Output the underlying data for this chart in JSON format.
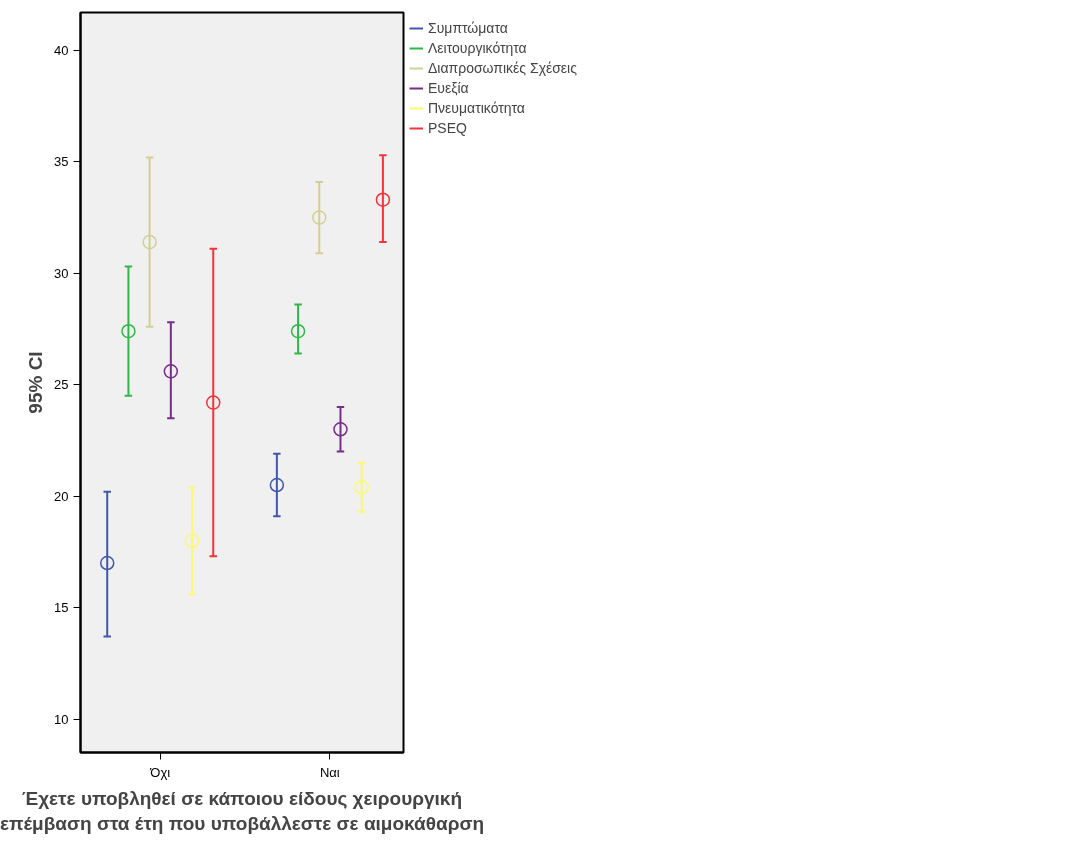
{
  "chart_data": {
    "type": "scatter",
    "xlabel": "Έχετε υποβληθεί σε κάποιου είδους χειρουργική\nεπέμβαση στα έτη που υποβάλλεστε σε αιμοκάθαρση",
    "ylabel": "95% CI",
    "categories": [
      "Όχι",
      "Ναι"
    ],
    "ylim": [
      8.5,
      41.7
    ],
    "yticks": [
      10,
      15,
      20,
      25,
      30,
      35,
      40
    ],
    "grid": false,
    "legend": "top right",
    "marker": "circle",
    "series": [
      {
        "name": "Συμπτώματα",
        "color": "#3e58ac",
        "values": [
          17.0,
          20.5
        ],
        "errors": [
          [
            13.7,
            20.2
          ],
          [
            19.1,
            21.9
          ]
        ]
      },
      {
        "name": "Λειτουργικότητα",
        "color": "#2eb848",
        "values": [
          27.4,
          27.4
        ],
        "errors": [
          [
            24.5,
            30.3
          ],
          [
            26.4,
            28.6
          ]
        ]
      },
      {
        "name": "Διαπροσωπικές Σχέσεις",
        "color": "#d3ce97",
        "values": [
          31.4,
          32.5
        ],
        "errors": [
          [
            27.6,
            35.2
          ],
          [
            30.9,
            34.1
          ]
        ]
      },
      {
        "name": "Ευεξία",
        "color": "#772d8b",
        "values": [
          25.6,
          23.0
        ],
        "errors": [
          [
            23.5,
            27.8
          ],
          [
            22.0,
            24.0
          ]
        ]
      },
      {
        "name": "Πνευματικότητα",
        "color": "#fbf873",
        "values": [
          18.0,
          20.4
        ],
        "errors": [
          [
            15.6,
            20.4
          ],
          [
            19.3,
            21.5
          ]
        ]
      },
      {
        "name": "PSEQ",
        "color": "#f2323c",
        "values": [
          24.2,
          33.3
        ],
        "errors": [
          [
            17.3,
            31.1
          ],
          [
            31.4,
            35.3
          ]
        ]
      }
    ]
  }
}
